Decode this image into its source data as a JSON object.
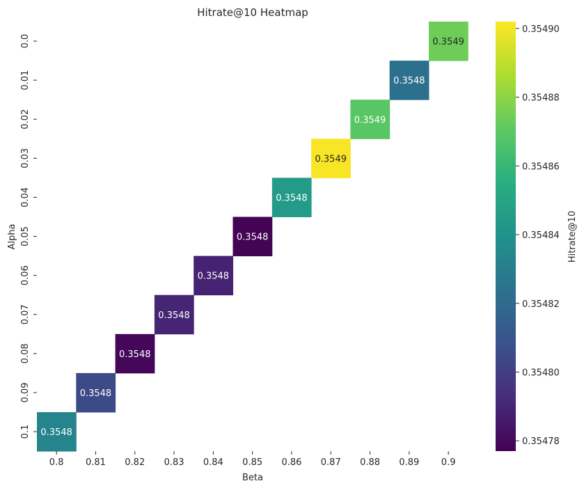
{
  "chart_data": {
    "type": "heatmap",
    "title": "Hitrate@10 Heatmap",
    "xlabel": "Beta",
    "ylabel": "Alpha",
    "x_categories": [
      "0.8",
      "0.81",
      "0.82",
      "0.83",
      "0.84",
      "0.85",
      "0.86",
      "0.87",
      "0.88",
      "0.89",
      "0.9"
    ],
    "y_categories": [
      "0.0",
      "0.01",
      "0.02",
      "0.03",
      "0.04",
      "0.05",
      "0.06",
      "0.07",
      "0.08",
      "0.09",
      "0.1"
    ],
    "colormap": "viridis",
    "cells": [
      {
        "x": "0.9",
        "y": "0.0",
        "value": 0.354874,
        "label": "0.3549",
        "label_color": "#262626"
      },
      {
        "x": "0.89",
        "y": "0.01",
        "value": 0.354823,
        "label": "0.3548",
        "label_color": "#ffffff"
      },
      {
        "x": "0.88",
        "y": "0.02",
        "value": 0.354869,
        "label": "0.3549",
        "label_color": "#ffffff"
      },
      {
        "x": "0.87",
        "y": "0.03",
        "value": 0.354901,
        "label": "0.3549",
        "label_color": "#262626"
      },
      {
        "x": "0.86",
        "y": "0.04",
        "value": 0.354845,
        "label": "0.3548",
        "label_color": "#ffffff"
      },
      {
        "x": "0.85",
        "y": "0.05",
        "value": 0.354778,
        "label": "0.3548",
        "label_color": "#ffffff"
      },
      {
        "x": "0.84",
        "y": "0.06",
        "value": 0.354789,
        "label": "0.3548",
        "label_color": "#ffffff"
      },
      {
        "x": "0.83",
        "y": "0.07",
        "value": 0.35479,
        "label": "0.3548",
        "label_color": "#ffffff"
      },
      {
        "x": "0.82",
        "y": "0.08",
        "value": 0.354779,
        "label": "0.3548",
        "label_color": "#ffffff"
      },
      {
        "x": "0.81",
        "y": "0.09",
        "value": 0.354805,
        "label": "0.3548",
        "label_color": "#ffffff"
      },
      {
        "x": "0.8",
        "y": "0.1",
        "value": 0.354833,
        "label": "0.3548",
        "label_color": "#ffffff"
      }
    ],
    "colorbar": {
      "label": "Hitrate@10",
      "vmin": 0.354777,
      "vmax": 0.354902,
      "ticks": [
        0.35478,
        0.3548,
        0.35482,
        0.35484,
        0.35486,
        0.35488,
        0.3549
      ],
      "tick_labels": [
        "0.35478",
        "0.35480",
        "0.35482",
        "0.35484",
        "0.35486",
        "0.35488",
        "0.35490"
      ]
    },
    "grid": false,
    "legend": "colorbar-right"
  }
}
